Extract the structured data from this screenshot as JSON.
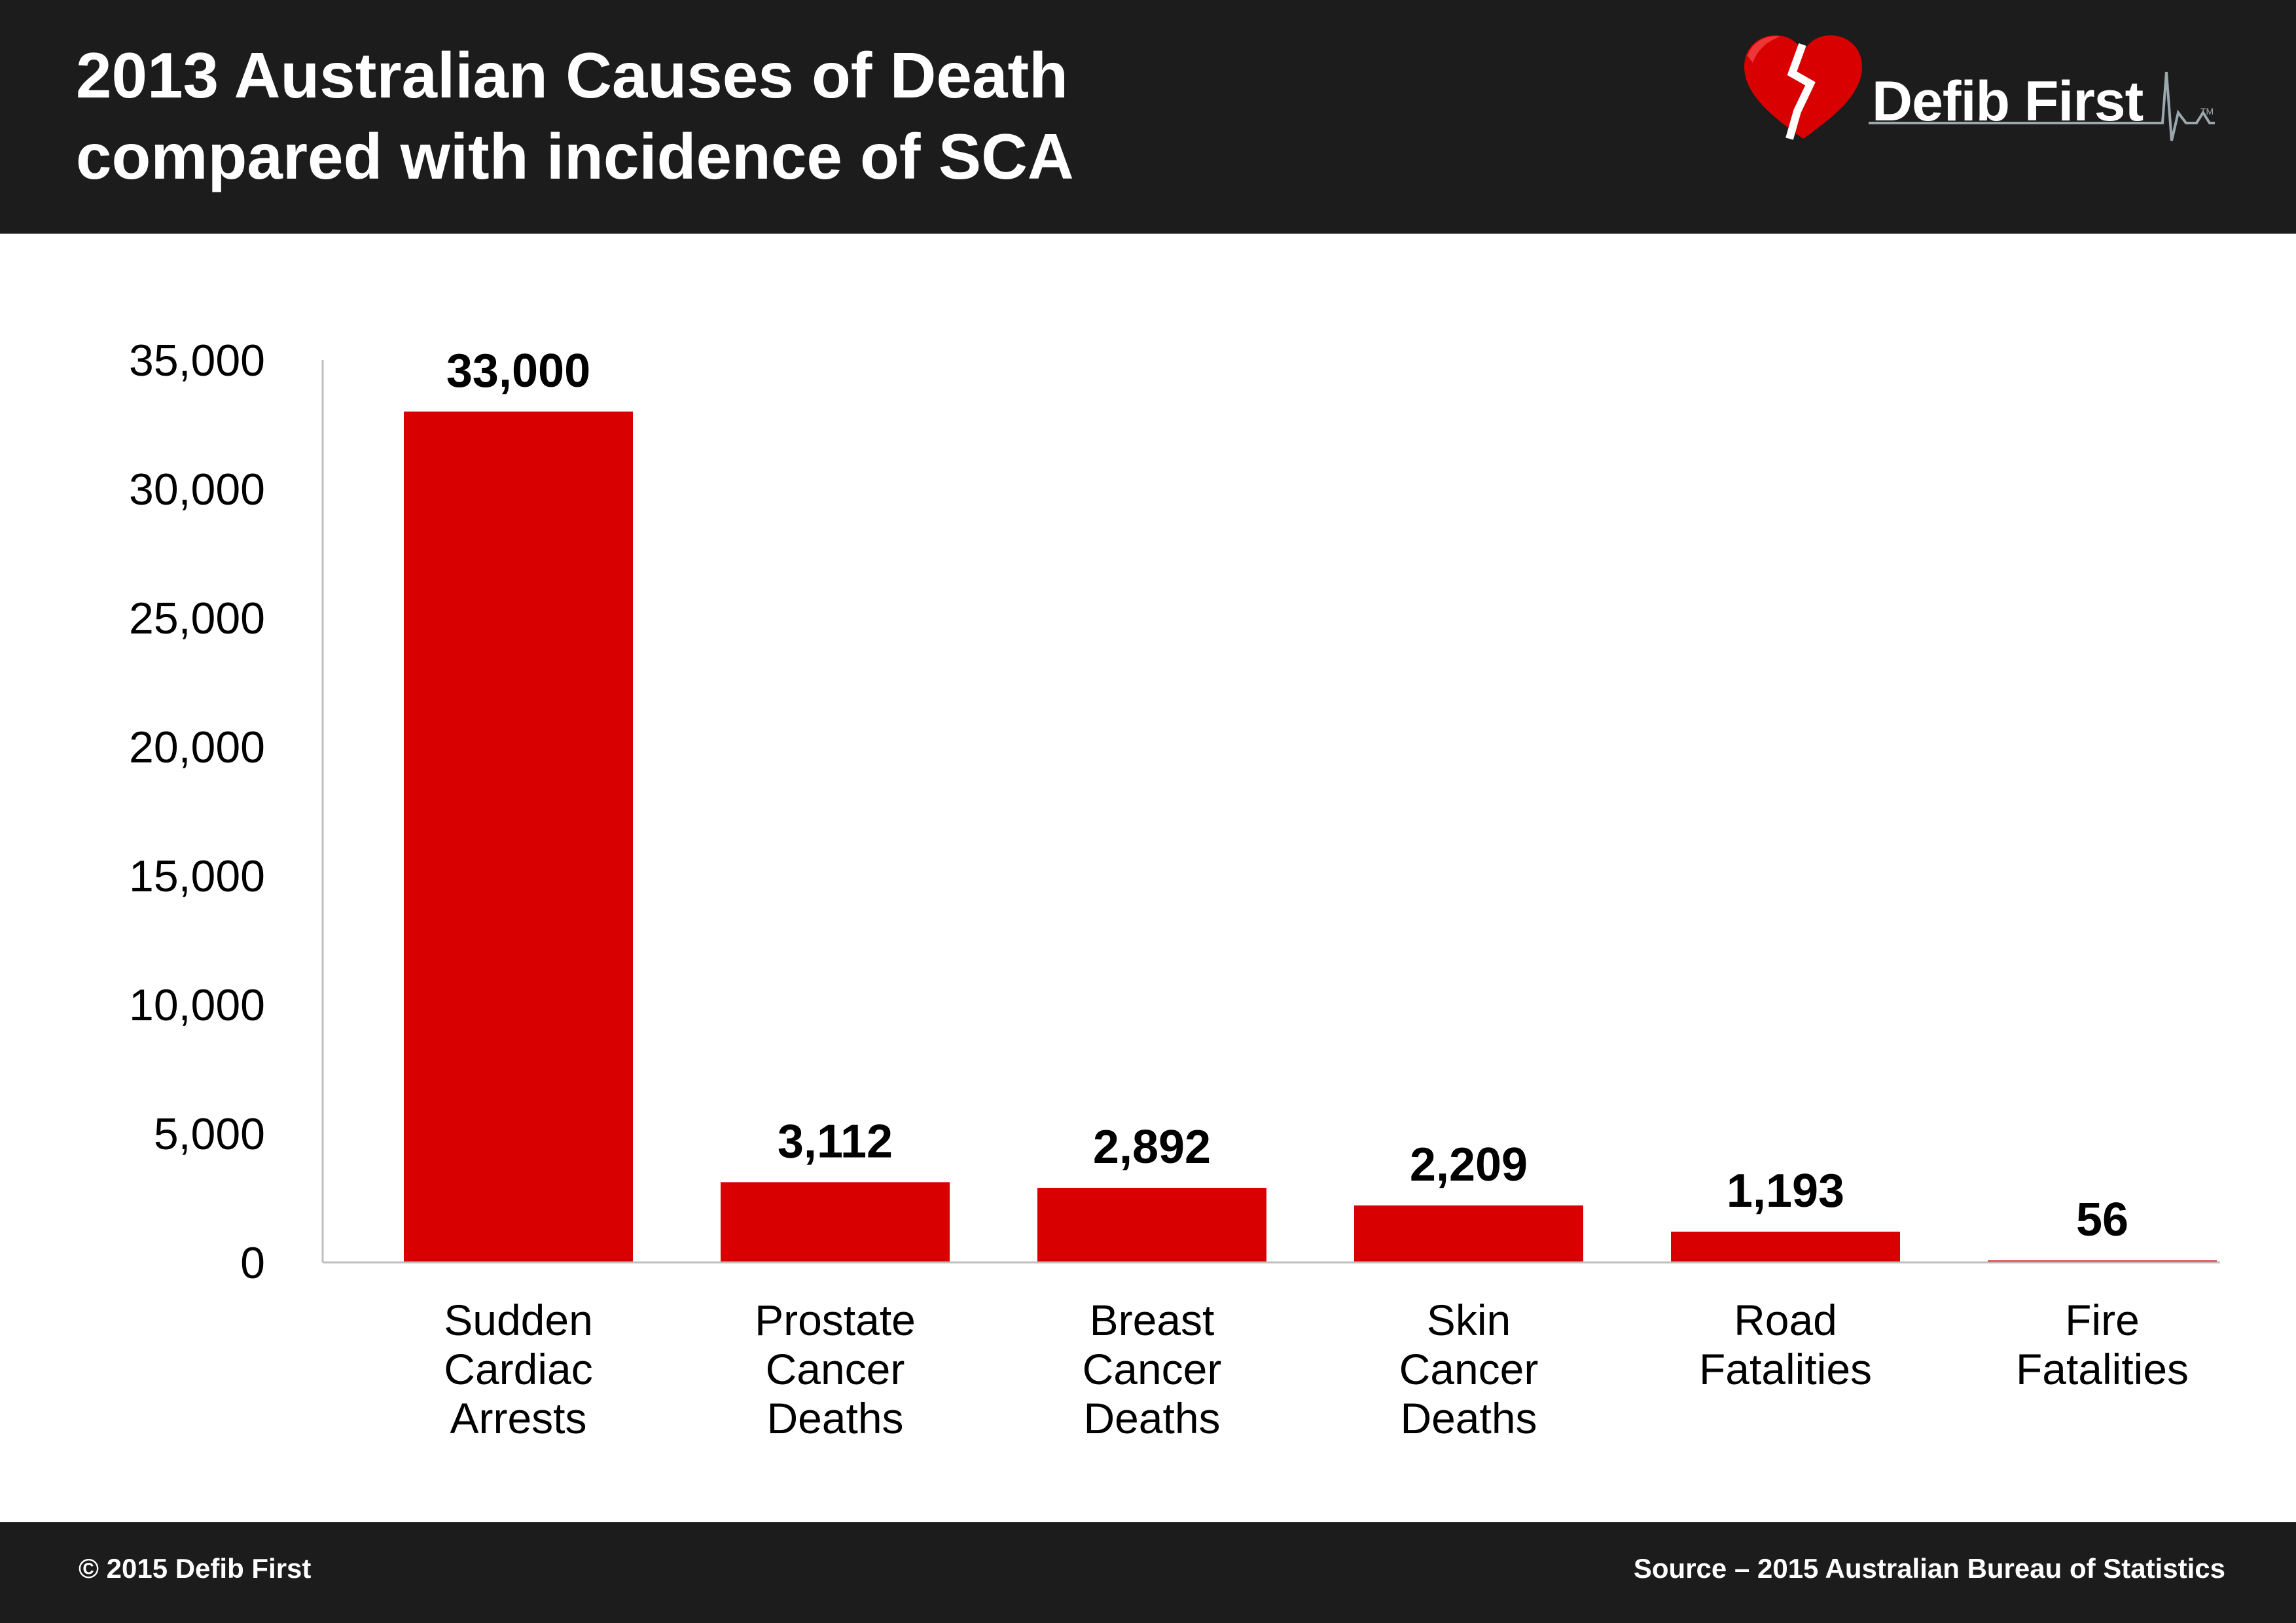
{
  "header": {
    "title_line1": "2013 Australian Causes of Death",
    "title_line2": "compared with incidence of SCA",
    "logo_text": "Defib First",
    "logo_icon": "broken-heart-icon",
    "trademark": "TM"
  },
  "footer": {
    "copyright": "© 2015 Defib First",
    "source": "Source – 2015 Australian Bureau of Statistics"
  },
  "colors": {
    "bar": "#d80000",
    "header_bg": "#1c1c1c",
    "axis": "#bfbfbf",
    "text": "#000000"
  },
  "chart_data": {
    "type": "bar",
    "title": "2013 Australian Causes of Death compared with incidence of SCA",
    "categories": [
      [
        "Sudden",
        "Cardiac",
        "Arrests"
      ],
      [
        "Prostate",
        "Cancer",
        "Deaths"
      ],
      [
        "Breast",
        "Cancer",
        "Deaths"
      ],
      [
        "Skin",
        "Cancer",
        "Deaths"
      ],
      [
        "Road",
        "Fatalities"
      ],
      [
        "Fire",
        "Fatalities"
      ]
    ],
    "values": [
      33000,
      3112,
      2892,
      2209,
      1193,
      56
    ],
    "data_labels": [
      "33,000",
      "3,112",
      "2,892",
      "2,209",
      "1,193",
      "56"
    ],
    "y_ticks": [
      0,
      5000,
      10000,
      15000,
      20000,
      25000,
      30000,
      35000
    ],
    "y_tick_labels": [
      "0",
      "5,000",
      "10,000",
      "15,000",
      "20,000",
      "25,000",
      "30,000",
      "35,000"
    ],
    "ylim": [
      0,
      35000
    ],
    "grid": false,
    "legend": "none"
  }
}
